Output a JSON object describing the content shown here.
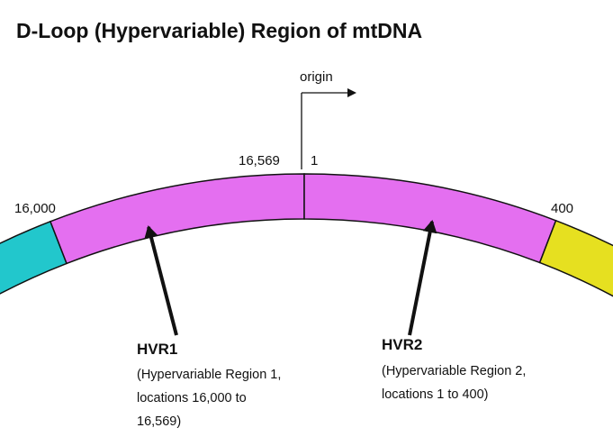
{
  "title": "D-Loop (Hypervariable) Region of mtDNA",
  "origin": {
    "label": "origin"
  },
  "positions": {
    "end": "16,569",
    "start": "1",
    "left": "16,000",
    "right": "400"
  },
  "regions": [
    {
      "label": "HVR1",
      "description": [
        "(Hypervariable Region 1,",
        "locations 16,000 to",
        "16,569)"
      ]
    },
    {
      "label": "HVR2",
      "description": [
        "(Hypervariable Region 2,",
        "locations 1 to 400)"
      ]
    }
  ]
}
